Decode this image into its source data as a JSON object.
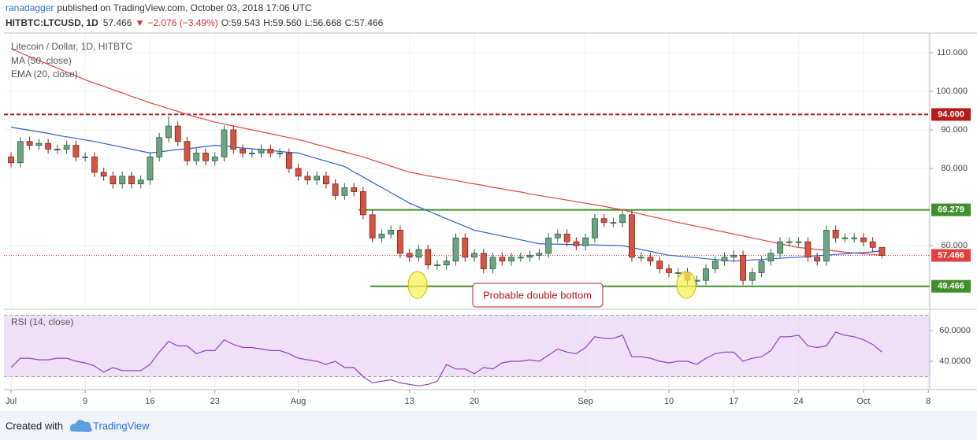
{
  "header": {
    "author": "ranadagger",
    "published": "published on TradingView.com, October 03, 2018 17:06 UTC",
    "symbol": "HITBTC:LTCUSD, 1D",
    "last": "57.466",
    "arrow": "▼",
    "change": "−2.076 (−3.49%)",
    "open": "O:59.543",
    "high": "H:59.560",
    "low": "L:56.668",
    "close": "C:57.466"
  },
  "footer": {
    "created_with": "Created with",
    "brand": "TradingView"
  },
  "chart_data": [
    {
      "type": "candlestick",
      "title": "Litecoin / Dollar, 1D, HITBTC",
      "xlim": [
        -0.77,
        99.15
      ],
      "xticks": [
        {
          "value": 0,
          "label": "Jul"
        },
        {
          "value": 8,
          "label": "9"
        },
        {
          "value": 15,
          "label": "16"
        },
        {
          "value": 22,
          "label": "23"
        },
        {
          "value": 31,
          "label": "Aug"
        },
        {
          "value": 43,
          "label": "13"
        },
        {
          "value": 50,
          "label": "20"
        },
        {
          "value": 62,
          "label": "Sep"
        },
        {
          "value": 71,
          "label": "10"
        },
        {
          "value": 78,
          "label": "17"
        },
        {
          "value": 85,
          "label": "24"
        },
        {
          "value": 92,
          "label": "Oct"
        },
        {
          "value": 99,
          "label": "8"
        }
      ],
      "ylim": [
        44.1,
        115.1
      ],
      "yticks": [
        {
          "value": 110,
          "label": "110.000"
        },
        {
          "value": 100,
          "label": "100.000"
        },
        {
          "value": 90,
          "label": "90.000"
        },
        {
          "value": 80,
          "label": "80.000"
        },
        {
          "value": 60,
          "label": "60.000"
        }
      ],
      "up_color": "#6ba583",
      "down_color": "#d75442",
      "open": [
        83,
        81.5,
        87,
        86,
        86.5,
        85,
        85,
        86,
        83,
        83,
        79,
        78,
        76,
        78,
        76,
        77,
        83,
        88,
        91,
        87,
        82,
        84,
        82,
        83,
        90,
        85,
        84,
        84,
        85,
        84,
        84,
        80,
        78,
        77,
        78,
        76,
        73,
        75,
        74,
        68,
        62,
        63,
        64,
        58,
        57,
        59,
        55,
        55,
        56,
        62,
        57,
        58,
        54,
        57,
        56,
        57,
        57,
        57.5,
        58,
        62,
        63,
        61,
        60,
        62,
        67,
        66,
        66,
        68,
        57,
        57,
        56,
        54,
        53,
        53,
        51,
        51,
        54,
        56,
        57,
        57.5,
        51,
        53,
        56,
        58,
        61,
        61,
        61,
        57,
        56,
        64,
        62,
        62,
        62,
        61,
        59.543
      ],
      "high": [
        84.2,
        88.2,
        88.2,
        87.7,
        87.7,
        86.2,
        87.2,
        87.2,
        84.2,
        84.2,
        80.2,
        79.2,
        79.2,
        79.2,
        78.2,
        84.2,
        89.2,
        93.5,
        92.2,
        88.2,
        85.2,
        85.2,
        84.2,
        91.2,
        91.2,
        86.2,
        85.2,
        86.2,
        86.2,
        85.2,
        85.2,
        81.2,
        79.2,
        79.2,
        79.2,
        77.2,
        76.2,
        76.2,
        75.2,
        69.2,
        64.2,
        65.2,
        65.2,
        59.2,
        60.2,
        60.2,
        56.2,
        57.2,
        63.2,
        63.2,
        59.2,
        59.2,
        58.2,
        58.2,
        58.2,
        58.2,
        58.7,
        59.2,
        63.2,
        64.2,
        64.2,
        62.2,
        63.2,
        68.2,
        68.2,
        67.2,
        69.2,
        69.2,
        58.2,
        58.2,
        57.2,
        55.2,
        54.2,
        54.2,
        52.2,
        55.2,
        57.2,
        58.2,
        58.7,
        58.7,
        54.2,
        57.2,
        59.2,
        62.2,
        62.2,
        62.2,
        62.2,
        58.2,
        65.2,
        65.2,
        63.2,
        63.2,
        63.2,
        62.2,
        59.56
      ],
      "low": [
        80.3,
        80.3,
        84.8,
        84.8,
        83.8,
        83.8,
        83.8,
        81.8,
        81.8,
        77.8,
        76.8,
        74.8,
        74.8,
        74.8,
        74.8,
        75.8,
        81.8,
        86.8,
        85.8,
        80.8,
        80.8,
        80.8,
        80.8,
        81.8,
        83.8,
        82.8,
        82.8,
        82.8,
        82.8,
        82.8,
        78.8,
        76.8,
        75.8,
        75.8,
        74.8,
        71.8,
        71.8,
        72.8,
        66.8,
        60.8,
        60.8,
        61.8,
        56.8,
        55.8,
        55.8,
        53.8,
        53.8,
        53.8,
        54.8,
        55.8,
        55.8,
        52.8,
        52.8,
        54.8,
        54.8,
        55.8,
        55.8,
        56.3,
        56.8,
        60.8,
        59.8,
        58.8,
        58.8,
        60.8,
        64.8,
        64.8,
        64.8,
        55.8,
        55.8,
        54.8,
        52.8,
        51.8,
        51.8,
        49.8,
        49.8,
        49.8,
        52.8,
        54.8,
        55.8,
        49.8,
        49.8,
        51.8,
        54.8,
        56.8,
        59.8,
        59.8,
        55.8,
        54.8,
        54.8,
        60.8,
        60.8,
        60.8,
        59.8,
        58.3,
        56.668
      ],
      "close": [
        81.5,
        87,
        86,
        86.5,
        85,
        85,
        86,
        83,
        83,
        79,
        78,
        76,
        78,
        76,
        77,
        83,
        88,
        91,
        87,
        82,
        84,
        82,
        83,
        90,
        85,
        84,
        84,
        85,
        84,
        84,
        80,
        78,
        77,
        78,
        76,
        73,
        75,
        74,
        68,
        62,
        63,
        64,
        58,
        57,
        59,
        55,
        55,
        56,
        62,
        57,
        58,
        54,
        57,
        56,
        57,
        57,
        57.5,
        58,
        62,
        63,
        61,
        60,
        62,
        67,
        66,
        66,
        68,
        57,
        57,
        56,
        54,
        53,
        53,
        51,
        51,
        54,
        56,
        57,
        57.5,
        51,
        53,
        56,
        58,
        61,
        61,
        61,
        57,
        56,
        64,
        62,
        62,
        62,
        61,
        59.543,
        57.466
      ],
      "series": [
        {
          "name": "MA (50, close)",
          "color": "#e8413c",
          "values": [
            111,
            110,
            109,
            108,
            107,
            106,
            105,
            104,
            103,
            102.1,
            101.3,
            100.4,
            99.6,
            98.7,
            97.9,
            97.0,
            96.3,
            95.5,
            94.8,
            94.0,
            93.3,
            92.7,
            92.0,
            91.5,
            91,
            90.5,
            90,
            89.5,
            89,
            88.5,
            88,
            87.5,
            86.9,
            86.2,
            85.6,
            84.9,
            84.3,
            83.6,
            83.0,
            82.2,
            81.4,
            80.6,
            79.8,
            79.0,
            78.6,
            78.1,
            77.7,
            77.3,
            76.9,
            76.4,
            76.0,
            75.6,
            75.1,
            74.7,
            74.3,
            73.9,
            73.4,
            73.0,
            72.6,
            72.2,
            71.8,
            71.4,
            71.0,
            70.6,
            70.2,
            69.7,
            69.3,
            68.7,
            68.2,
            67.6,
            67.1,
            66.5,
            66,
            65.5,
            65,
            64.5,
            64,
            63.5,
            63,
            62.5,
            62,
            61.5,
            61,
            60.5,
            60,
            59.5,
            59.3,
            59,
            58.8,
            58.6,
            58.3,
            58.1,
            57.9,
            57.7,
            57.5
          ]
        },
        {
          "name": "EMA (20, close)",
          "color": "#2a5fd6",
          "values": [
            90.7,
            90.3,
            89.9,
            89.5,
            89.1,
            88.6,
            88.2,
            87.8,
            87.4,
            87.0,
            86.5,
            86,
            85.5,
            85,
            84.5,
            84.0,
            84.3,
            84.6,
            84.9,
            85.1,
            85.4,
            85.7,
            86.0,
            85.8,
            85.6,
            85.3,
            85.1,
            84.9,
            84.7,
            84.4,
            84.2,
            84.0,
            83.3,
            82.6,
            81.9,
            81.2,
            80.5,
            79.1,
            77.8,
            76.4,
            75.1,
            73.7,
            72.4,
            71.0,
            70,
            69,
            68,
            67,
            66,
            65,
            64,
            63.5,
            63,
            62.5,
            62,
            61.5,
            61,
            60.5,
            60.4,
            60.4,
            60.3,
            60.3,
            60.2,
            60.2,
            60.1,
            60.1,
            60.0,
            59.5,
            59,
            58.5,
            58,
            57.5,
            57.3,
            57.1,
            56.9,
            56.6,
            56.4,
            56.2,
            56.0,
            56.1,
            56.3,
            56.4,
            56.6,
            56.7,
            56.9,
            57.0,
            57.2,
            57.4,
            57.5,
            57.7,
            57.9,
            58.1,
            58.2,
            58.4,
            58.6
          ]
        }
      ],
      "levels": [
        {
          "value": 94,
          "label": "94.000",
          "color": "#b71c1c",
          "dashed": true
        },
        {
          "value": 69.279,
          "label": "69.279",
          "color": "#3f8f2a",
          "dashed": false
        },
        {
          "value": 49.466,
          "label": "49.466",
          "color": "#3f8f2a",
          "dashed": false
        }
      ],
      "last": {
        "value": 57.466,
        "label": "57.466",
        "color": "#e04040"
      },
      "annotation": "Probable double bottom"
    },
    {
      "type": "line",
      "title": "RSI (14, close)",
      "color": "#8e3fbf",
      "values": [
        36,
        42,
        42,
        41,
        41,
        42,
        42,
        40,
        39,
        37,
        33,
        36,
        34,
        34,
        34,
        38,
        46,
        53,
        50,
        50,
        45,
        47,
        47,
        54,
        51,
        49,
        49,
        48,
        47,
        47,
        45,
        42,
        41,
        40,
        38,
        40,
        36,
        36,
        30,
        26,
        27,
        28,
        26,
        25,
        24,
        25,
        27,
        38,
        35,
        35,
        32,
        36,
        35,
        39,
        40,
        40,
        41,
        40,
        44,
        48,
        46,
        45,
        49,
        56,
        55,
        55,
        57,
        43,
        43,
        42,
        40,
        39,
        40,
        40,
        38,
        42,
        45,
        46,
        46,
        40,
        42,
        43,
        47,
        56,
        56,
        57,
        50,
        49,
        50,
        59,
        57,
        56,
        54,
        51,
        46
      ],
      "ylim": [
        22.6,
        71.8
      ],
      "yticks": [
        {
          "value": 60,
          "label": "60.0000"
        },
        {
          "value": 40,
          "label": "40.0000"
        }
      ],
      "band": [
        30,
        70
      ],
      "band_color": "#eee0f7"
    }
  ]
}
